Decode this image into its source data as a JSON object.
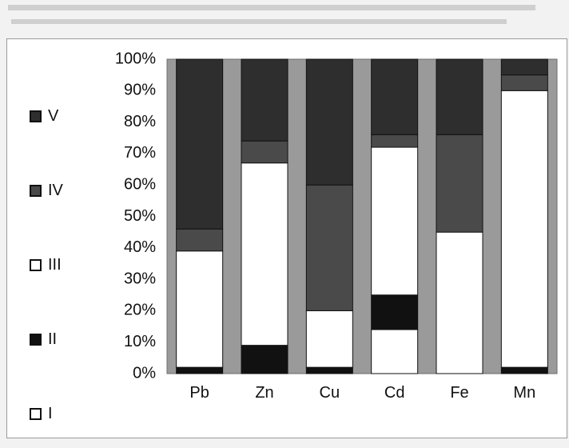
{
  "chart_data": {
    "type": "bar",
    "stacked": true,
    "percent": true,
    "categories": [
      "Pb",
      "Zn",
      "Cu",
      "Cd",
      "Fe",
      "Mn"
    ],
    "series": [
      {
        "name": "I",
        "color": "#ffffff",
        "values": [
          0,
          0,
          0,
          14,
          0,
          0
        ]
      },
      {
        "name": "II",
        "color": "#111111",
        "values": [
          2,
          9,
          2,
          11,
          0,
          2
        ]
      },
      {
        "name": "III",
        "color": "#ffffff",
        "values": [
          37,
          58,
          18,
          47,
          45,
          88
        ]
      },
      {
        "name": "IV",
        "color": "#4a4a4a",
        "values": [
          7,
          7,
          40,
          4,
          31,
          5
        ]
      },
      {
        "name": "V",
        "color": "#2e2e2e",
        "values": [
          54,
          26,
          40,
          24,
          24,
          5
        ]
      }
    ],
    "y_ticks": [
      "0%",
      "10%",
      "20%",
      "30%",
      "40%",
      "50%",
      "60%",
      "70%",
      "80%",
      "90%",
      "100%"
    ],
    "ylim": [
      0,
      100
    ],
    "legend_order": [
      "V",
      "IV",
      "III",
      "II",
      "I"
    ],
    "legend_position": "left",
    "plot_background": "#9a9a9a",
    "grid": false
  }
}
